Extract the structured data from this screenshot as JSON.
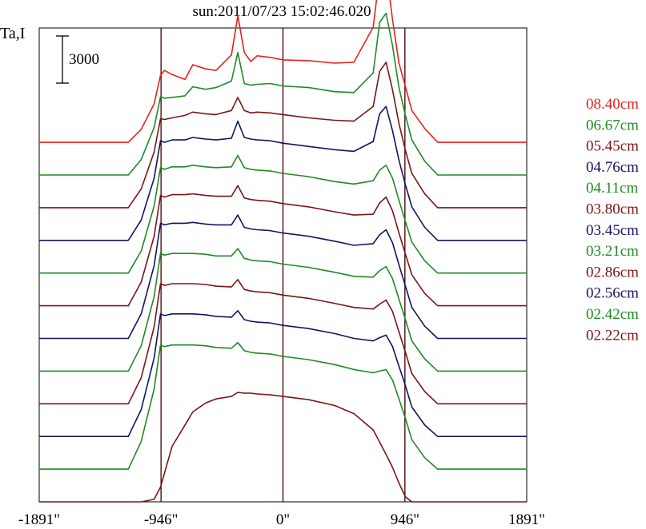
{
  "title": "sun:2011/07/23 15:02:46.020",
  "ylabel": "Ta,I",
  "scale_bar_label": "3000",
  "colors": {
    "red": "#e8211c",
    "green": "#1f8a23",
    "maroon": "#7b1515",
    "navy": "#14145f",
    "axis": "#000000",
    "vline": "#4a0e0e"
  },
  "chart_data": {
    "type": "line",
    "title": "sun:2011/07/23 15:02:46.020",
    "ylabel": "Ta,I",
    "xlabel": "",
    "x_unit": "arcsec",
    "x_ticks": [
      {
        "value": -1891,
        "label": "-1891\""
      },
      {
        "value": -946,
        "label": "-946\""
      },
      {
        "value": 0,
        "label": "0\""
      },
      {
        "value": 946,
        "label": "946\""
      },
      {
        "value": 1891,
        "label": "1891\""
      }
    ],
    "xlim": [
      -1891,
      1891
    ],
    "vertical_lines": [
      -946,
      0,
      946
    ],
    "scale_bar": {
      "label": "3000",
      "value": 3000
    },
    "ylim": [
      0,
      58000
    ],
    "offset_step": 4000,
    "series": [
      {
        "name": "08.40cm",
        "color": "#e8211c",
        "offset": 44000,
        "x": [
          -1891,
          -1200,
          -1100,
          -1000,
          -950,
          -920,
          -860,
          -760,
          -700,
          -600,
          -520,
          -400,
          -350,
          -300,
          -250,
          -200,
          -100,
          0,
          200,
          400,
          550,
          700,
          750,
          800,
          850,
          900,
          950,
          1000,
          1100,
          1200,
          1891
        ],
        "y": [
          0,
          0,
          1600,
          4700,
          8200,
          8800,
          8300,
          7700,
          9500,
          9000,
          8800,
          10700,
          15500,
          11000,
          9900,
          10600,
          10400,
          10100,
          10000,
          9700,
          9800,
          14100,
          20600,
          21200,
          15000,
          9700,
          6800,
          3900,
          1700,
          0,
          0
        ]
      },
      {
        "name": "06.67cm",
        "color": "#1f8a23",
        "offset": 40000,
        "x": [
          -1891,
          -1200,
          -1100,
          -1000,
          -950,
          -920,
          -860,
          -760,
          -700,
          -600,
          -520,
          -400,
          -350,
          -300,
          -250,
          -200,
          -100,
          0,
          200,
          400,
          550,
          700,
          750,
          800,
          850,
          900,
          950,
          1000,
          1100,
          1200,
          1891
        ],
        "y": [
          0,
          0,
          1900,
          5800,
          9600,
          9400,
          9500,
          9700,
          10800,
          10500,
          10700,
          11500,
          15000,
          11200,
          11000,
          11100,
          11200,
          10900,
          10700,
          10200,
          10100,
          12500,
          18700,
          19800,
          15800,
          10700,
          7300,
          4300,
          1700,
          0,
          0
        ]
      },
      {
        "name": "05.45cm",
        "color": "#7b1515",
        "offset": 36000,
        "x": [
          -1891,
          -1200,
          -1100,
          -1000,
          -950,
          -920,
          -860,
          -760,
          -700,
          -600,
          -520,
          -400,
          -350,
          -300,
          -250,
          -200,
          -100,
          0,
          200,
          400,
          550,
          700,
          750,
          800,
          850,
          900,
          950,
          1000,
          1100,
          1200,
          1891
        ],
        "y": [
          0,
          0,
          2300,
          6800,
          10900,
          10800,
          11000,
          11300,
          11700,
          11500,
          11400,
          11900,
          13500,
          11900,
          11600,
          11700,
          11600,
          11400,
          11000,
          10700,
          10600,
          12400,
          16700,
          17800,
          14400,
          10300,
          7000,
          4200,
          1700,
          0,
          0
        ]
      },
      {
        "name": "04.76cm",
        "color": "#14145f",
        "offset": 32000,
        "x": [
          -1891,
          -1200,
          -1100,
          -1000,
          -950,
          -920,
          -860,
          -760,
          -700,
          -600,
          -520,
          -400,
          -350,
          -300,
          -250,
          -200,
          -100,
          0,
          200,
          400,
          550,
          700,
          750,
          800,
          850,
          900,
          950,
          1000,
          1100,
          1200,
          1891
        ],
        "y": [
          0,
          0,
          2500,
          7600,
          12200,
          12000,
          12300,
          12300,
          12600,
          12400,
          12300,
          12500,
          14600,
          12600,
          12400,
          12300,
          12200,
          11900,
          11500,
          11100,
          10900,
          12100,
          15500,
          16400,
          13400,
          9800,
          6800,
          4100,
          1600,
          0,
          0
        ]
      },
      {
        "name": "04.11cm",
        "color": "#1f8a23",
        "offset": 28000,
        "x": [
          -1891,
          -1200,
          -1100,
          -1000,
          -950,
          -920,
          -860,
          -760,
          -700,
          -600,
          -520,
          -400,
          -350,
          -300,
          -250,
          -200,
          -100,
          0,
          200,
          400,
          550,
          700,
          750,
          800,
          850,
          900,
          950,
          1000,
          1100,
          1200,
          1891
        ],
        "y": [
          0,
          0,
          2700,
          8200,
          12900,
          12700,
          13000,
          13000,
          13200,
          13000,
          12900,
          13000,
          14400,
          12900,
          12700,
          12600,
          12500,
          12200,
          11800,
          11200,
          10900,
          11300,
          12600,
          13200,
          11600,
          8900,
          6300,
          3800,
          1500,
          0,
          0
        ]
      },
      {
        "name": "03.80cm",
        "color": "#7b1515",
        "offset": 24000,
        "x": [
          -1891,
          -1200,
          -1100,
          -1000,
          -950,
          -920,
          -860,
          -760,
          -700,
          -600,
          -520,
          -400,
          -350,
          -300,
          -250,
          -200,
          -100,
          0,
          200,
          400,
          550,
          700,
          750,
          800,
          850,
          900,
          950,
          1000,
          1100,
          1200,
          1891
        ],
        "y": [
          0,
          0,
          2900,
          8500,
          13500,
          13300,
          13600,
          13600,
          13700,
          13500,
          13400,
          13400,
          14700,
          13200,
          13000,
          12900,
          12800,
          12500,
          12100,
          11500,
          11100,
          11200,
          12600,
          13300,
          11600,
          8900,
          6300,
          3800,
          1500,
          0,
          0
        ]
      },
      {
        "name": "03.45cm",
        "color": "#14145f",
        "offset": 20000,
        "x": [
          -1891,
          -1200,
          -1100,
          -1000,
          -950,
          -920,
          -860,
          -760,
          -700,
          -600,
          -520,
          -400,
          -350,
          -300,
          -250,
          -200,
          -100,
          0,
          200,
          400,
          550,
          700,
          750,
          800,
          850,
          900,
          950,
          1000,
          1100,
          1200,
          1891
        ],
        "y": [
          0,
          0,
          3000,
          8900,
          14100,
          13900,
          14100,
          14100,
          14200,
          14000,
          13900,
          13900,
          15100,
          13600,
          13400,
          13300,
          13200,
          12900,
          12500,
          11900,
          11400,
          11600,
          12700,
          13300,
          11700,
          9000,
          6400,
          3800,
          1500,
          0,
          0
        ]
      },
      {
        "name": "03.21cm",
        "color": "#1f8a23",
        "offset": 16000,
        "x": [
          -1891,
          -1200,
          -1100,
          -1000,
          -950,
          -920,
          -860,
          -760,
          -700,
          -600,
          -520,
          -400,
          -350,
          -300,
          -250,
          -200,
          -100,
          0,
          200,
          400,
          550,
          700,
          750,
          800,
          850,
          900,
          950,
          1000,
          1100,
          1200,
          1891
        ],
        "y": [
          0,
          0,
          3100,
          9100,
          14400,
          14200,
          14400,
          14400,
          14400,
          14300,
          14100,
          14100,
          15000,
          13800,
          13600,
          13500,
          13400,
          13100,
          12700,
          12100,
          11600,
          11500,
          12300,
          12800,
          11300,
          8800,
          6300,
          3700,
          1500,
          0,
          0
        ]
      },
      {
        "name": "02.86cm",
        "color": "#7b1515",
        "offset": 12000,
        "x": [
          -1891,
          -1200,
          -1100,
          -1000,
          -950,
          -920,
          -860,
          -760,
          -700,
          -600,
          -520,
          -400,
          -350,
          -300,
          -250,
          -200,
          -100,
          0,
          200,
          400,
          550,
          700,
          750,
          800,
          850,
          900,
          950,
          1000,
          1100,
          1200,
          1891
        ],
        "y": [
          0,
          0,
          3200,
          9400,
          14700,
          14500,
          14700,
          14700,
          14700,
          14600,
          14400,
          14300,
          15200,
          14000,
          13800,
          13700,
          13600,
          13300,
          12900,
          12300,
          11800,
          11600,
          12200,
          12700,
          11300,
          8800,
          6300,
          3700,
          1500,
          0,
          0
        ]
      },
      {
        "name": "02.56cm",
        "color": "#14145f",
        "offset": 8000,
        "x": [
          -1891,
          -1200,
          -1100,
          -1000,
          -950,
          -920,
          -860,
          -760,
          -700,
          -600,
          -520,
          -400,
          -350,
          -300,
          -250,
          -200,
          -100,
          0,
          200,
          400,
          550,
          700,
          750,
          800,
          850,
          900,
          950,
          1000,
          1100,
          1200,
          1891
        ],
        "y": [
          0,
          0,
          3300,
          9600,
          15000,
          14800,
          15000,
          15000,
          15000,
          14900,
          14700,
          14600,
          15400,
          14300,
          14100,
          14000,
          13900,
          13600,
          13200,
          12600,
          12000,
          11700,
          12100,
          12400,
          11000,
          8600,
          6200,
          3600,
          1400,
          0,
          0
        ]
      },
      {
        "name": "02.42cm",
        "color": "#1f8a23",
        "offset": 4000,
        "x": [
          -1891,
          -1200,
          -1100,
          -1000,
          -950,
          -920,
          -860,
          -760,
          -700,
          -600,
          -520,
          -400,
          -350,
          -300,
          -250,
          -200,
          -100,
          0,
          200,
          400,
          550,
          700,
          750,
          800,
          850,
          900,
          950,
          1000,
          1100,
          1200,
          1891
        ],
        "y": [
          0,
          0,
          3400,
          9800,
          15200,
          15000,
          15200,
          15200,
          15200,
          15100,
          14900,
          14800,
          15500,
          14500,
          14300,
          14200,
          14100,
          13800,
          13400,
          12800,
          12200,
          11800,
          12000,
          12200,
          10900,
          8600,
          6200,
          3600,
          1400,
          0,
          0
        ]
      },
      {
        "name": "02.22cm",
        "color": "#7b1515",
        "offset": 0,
        "x": [
          -1891,
          -1200,
          -1100,
          -1000,
          -950,
          -920,
          -860,
          -760,
          -700,
          -600,
          -520,
          -400,
          -350,
          -300,
          -250,
          -200,
          -100,
          0,
          200,
          400,
          550,
          700,
          750,
          800,
          850,
          900,
          950,
          1000,
          1100,
          1200,
          1891
        ],
        "y": [
          0,
          0,
          0,
          300,
          1800,
          3500,
          6800,
          9400,
          11000,
          12100,
          12600,
          12900,
          13400,
          13300,
          13300,
          13200,
          13100,
          12900,
          12500,
          11800,
          10800,
          8800,
          7300,
          5800,
          4200,
          2300,
          600,
          0,
          0,
          0,
          0
        ]
      }
    ]
  }
}
